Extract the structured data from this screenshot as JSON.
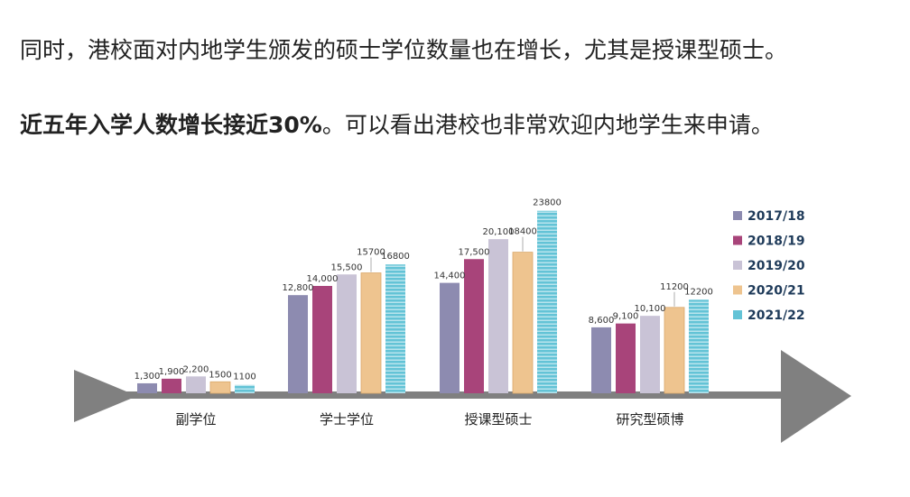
{
  "text": {
    "paragraph1": "同时，港校面对内地学生颁发的硕士学位数量也在增长，尤其是授课型硕士。",
    "paragraph2_bold": "近五年入学人数增长接近30%",
    "paragraph2_rest": "。可以看出港校也非常欢迎内地学生来申请。"
  },
  "chart_data": {
    "type": "bar",
    "categories": [
      "副学位",
      "学士学位",
      "授课型硕士",
      "研究型硕博"
    ],
    "series": [
      {
        "name": "2017/18",
        "values": [
          1300,
          12800,
          14400,
          8600
        ],
        "labels": [
          "1,300",
          "12,800",
          "14,400",
          "8,600"
        ],
        "color": "#8d8bb0"
      },
      {
        "name": "2018/19",
        "values": [
          1900,
          14000,
          17500,
          9100
        ],
        "labels": [
          "1,900",
          "14,000",
          "17,500",
          "9,100"
        ],
        "color": "#a8447a"
      },
      {
        "name": "2019/20",
        "values": [
          2200,
          15500,
          20100,
          10100
        ],
        "labels": [
          "2,200",
          "15,500",
          "20,100",
          "10,100"
        ],
        "color": "#c9c3d6"
      },
      {
        "name": "2020/21",
        "values": [
          1500,
          15700,
          18400,
          11200
        ],
        "labels": [
          "1500",
          "15700",
          "18400",
          "11200"
        ],
        "color": "#eec48f"
      },
      {
        "name": "2021/22",
        "values": [
          1100,
          16800,
          23800,
          12200
        ],
        "labels": [
          "1100",
          "16800",
          "23800",
          "12200"
        ],
        "color": "#63c3d6"
      }
    ],
    "ylim": [
      0,
      24000
    ],
    "legend_position": "top-right",
    "grid": false
  }
}
